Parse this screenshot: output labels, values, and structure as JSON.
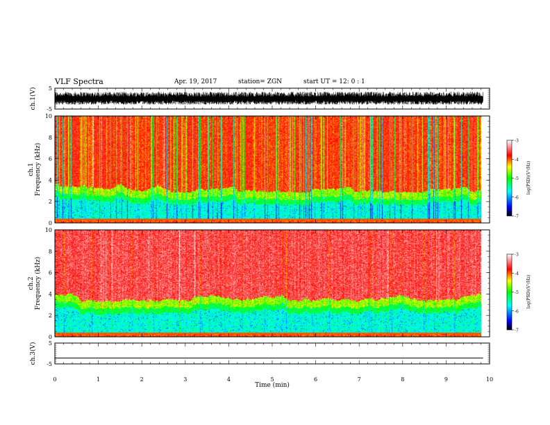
{
  "header": {
    "title": "VLF Spectra",
    "date": "Apr. 19, 2017",
    "station": "station= ZGN",
    "start": "start  UT =   12: 0  : 1"
  },
  "chart_data": [
    {
      "type": "line",
      "name": "ch1-waveform",
      "ylabel": "ch.1(V)",
      "ylim": [
        -5,
        5
      ],
      "yticks": [
        -5,
        5
      ],
      "xlim": [
        0,
        10
      ],
      "data_end_min": 9.85,
      "envelope": "dense noise between about -2.8 and 3.3 V"
    },
    {
      "type": "heatmap",
      "name": "ch1-spectrogram",
      "ylabel": "ch.1",
      "ylabel2": "Frequency  (kHz)",
      "ylim": [
        0,
        10
      ],
      "yticks": [
        0,
        2,
        4,
        6,
        8,
        10
      ],
      "xlim": [
        0,
        10
      ],
      "data_end_min": 9.85,
      "colorbar": {
        "label": "log(PSD)(V²/Hz)",
        "range": [
          -7,
          -3
        ],
        "ticks": [
          -7,
          -6,
          -5,
          -4,
          -3
        ],
        "colors": [
          "#000000",
          "#0000ff",
          "#00ffff",
          "#00ff00",
          "#ffff00",
          "#ff0000",
          "#ffffff"
        ]
      }
    },
    {
      "type": "heatmap",
      "name": "ch2-spectrogram",
      "ylabel": "ch.2",
      "ylabel2": "Frequency  (kHz)",
      "ylim": [
        0,
        10
      ],
      "yticks": [
        0,
        2,
        4,
        6,
        8,
        10
      ],
      "xlim": [
        0,
        10
      ],
      "data_end_min": 9.85,
      "colorbar": {
        "label": "log(PSD)(V²/Hz)",
        "range": [
          -7,
          -3
        ],
        "ticks": [
          -7,
          -6,
          -5,
          -4,
          -3
        ],
        "colors": [
          "#000000",
          "#0000ff",
          "#00ffff",
          "#00ff00",
          "#ffff00",
          "#ff0000",
          "#ffffff"
        ]
      }
    },
    {
      "type": "line",
      "name": "ch3-waveform",
      "ylabel": "ch.3(V)",
      "ylim": [
        -5,
        5
      ],
      "yticks": [
        -5,
        5
      ],
      "xlim": [
        0,
        10
      ],
      "data_end_min": 9.85,
      "constant_value": -2.2
    }
  ],
  "xaxis": {
    "label": "Time  (min)",
    "ticks": [
      0,
      1,
      2,
      3,
      4,
      5,
      6,
      7,
      8,
      9,
      10
    ]
  }
}
